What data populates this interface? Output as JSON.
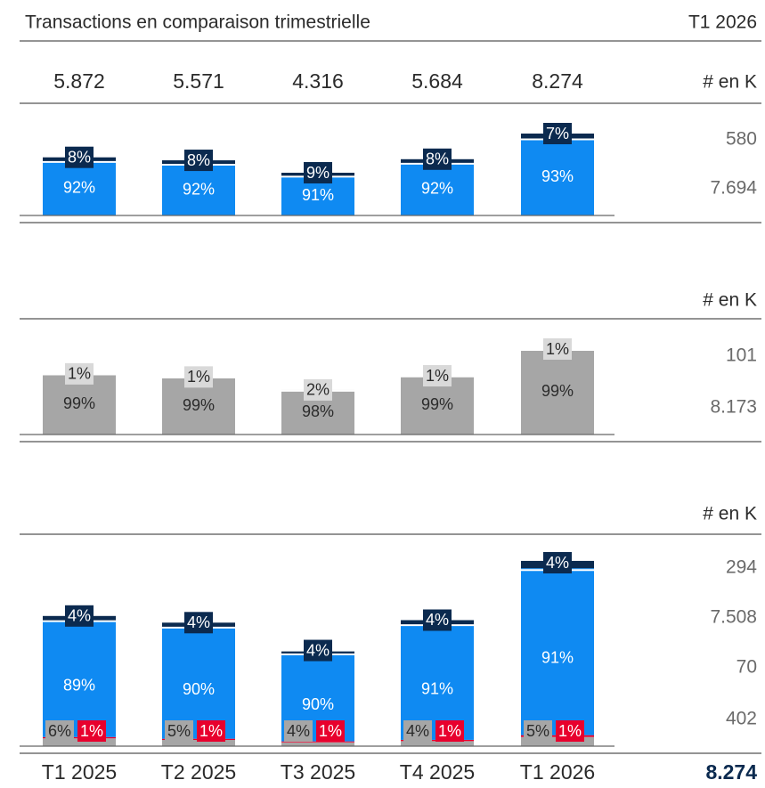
{
  "header": {
    "title": "Transactions en comparaison trimestrielle",
    "period": "T1 2026"
  },
  "categories": [
    "T1 2025",
    "T2 2025",
    "T3 2025",
    "T4 2025",
    "T1 2026"
  ],
  "totals": [
    {
      "value": 5872,
      "label": "5.872"
    },
    {
      "value": 5571,
      "label": "5.571"
    },
    {
      "value": 4316,
      "label": "4.316"
    },
    {
      "value": 5684,
      "label": "5.684"
    },
    {
      "value": 8274,
      "label": "8.274"
    }
  ],
  "grand_total": {
    "value": 8274,
    "label": "8.274"
  },
  "chart_data": [
    {
      "type": "bar",
      "unit_label": "# en K",
      "series": [
        {
          "color": "#0f8af2",
          "values": [
            92,
            92,
            91,
            92,
            93
          ],
          "value_labels": [
            "92%",
            "92%",
            "91%",
            "92%",
            "93%"
          ],
          "last_count": {
            "value": 7694,
            "label": "7.694"
          }
        },
        {
          "color": "#0b2a4f",
          "values": [
            8,
            8,
            9,
            8,
            7
          ],
          "value_labels": [
            "8%",
            "8%",
            "9%",
            "8%",
            "7%"
          ],
          "last_count": 580
        }
      ]
    },
    {
      "type": "bar",
      "unit_label": "# en K",
      "series": [
        {
          "color": "#a6a6a6",
          "values": [
            99,
            99,
            98,
            99,
            99
          ],
          "value_labels": [
            "99%",
            "99%",
            "98%",
            "99%",
            "99%"
          ],
          "last_count": {
            "value": 8173,
            "label": "8.173"
          }
        },
        {
          "color": "#d9d9d9",
          "values": [
            1,
            1,
            2,
            1,
            1
          ],
          "value_labels": [
            "1%",
            "1%",
            "2%",
            "1%",
            "1%"
          ],
          "last_count": 101
        }
      ]
    },
    {
      "type": "bar",
      "unit_label": "# en K",
      "series": [
        {
          "color": "#a6a6a6",
          "values": [
            6,
            5,
            4,
            4,
            5
          ],
          "value_labels": [
            "6%",
            "5%",
            "4%",
            "4%",
            "5%"
          ],
          "last_count": 402
        },
        {
          "color": "#e8002d",
          "values": [
            1,
            1,
            1,
            1,
            1
          ],
          "value_labels": [
            "1%",
            "1%",
            "1%",
            "1%",
            "1%"
          ],
          "last_count": 70
        },
        {
          "color": "#0f8af2",
          "values": [
            89,
            90,
            90,
            91,
            91
          ],
          "value_labels": [
            "89%",
            "90%",
            "90%",
            "91%",
            "91%"
          ],
          "last_count": {
            "value": 7508,
            "label": "7.508"
          }
        },
        {
          "color": "#0b2a4f",
          "values": [
            4,
            4,
            4,
            4,
            4
          ],
          "value_labels": [
            "4%",
            "4%",
            "4%",
            "4%",
            "4%"
          ],
          "last_count": 294
        }
      ]
    }
  ]
}
